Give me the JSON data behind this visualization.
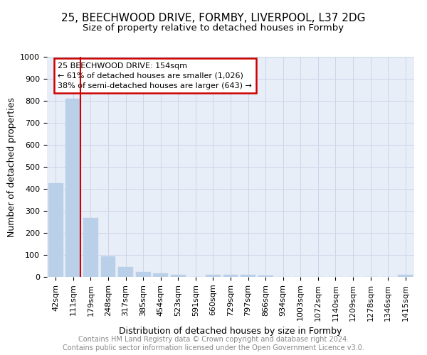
{
  "title1": "25, BEECHWOOD DRIVE, FORMBY, LIVERPOOL, L37 2DG",
  "title2": "Size of property relative to detached houses in Formby",
  "xlabel": "Distribution of detached houses by size in Formby",
  "ylabel": "Number of detached properties",
  "categories": [
    "42sqm",
    "111sqm",
    "179sqm",
    "248sqm",
    "317sqm",
    "385sqm",
    "454sqm",
    "523sqm",
    "591sqm",
    "660sqm",
    "729sqm",
    "797sqm",
    "866sqm",
    "934sqm",
    "1003sqm",
    "1072sqm",
    "1140sqm",
    "1209sqm",
    "1278sqm",
    "1346sqm",
    "1415sqm"
  ],
  "values": [
    425,
    810,
    268,
    92,
    46,
    23,
    15,
    10,
    0,
    10,
    10,
    10,
    8,
    0,
    0,
    0,
    0,
    0,
    0,
    0,
    10
  ],
  "bar_color": "#bad0e8",
  "bar_edgecolor": "#bad0e8",
  "vline_color": "#cc0000",
  "annotation_text": "25 BEECHWOOD DRIVE: 154sqm\n← 61% of detached houses are smaller (1,026)\n38% of semi-detached houses are larger (643) →",
  "annotation_box_edgecolor": "#cc0000",
  "annotation_box_facecolor": "#ffffff",
  "ylim": [
    0,
    1000
  ],
  "yticks": [
    0,
    100,
    200,
    300,
    400,
    500,
    600,
    700,
    800,
    900,
    1000
  ],
  "grid_color": "#ccd6e8",
  "bg_color": "#e8eef8",
  "footer1": "Contains HM Land Registry data © Crown copyright and database right 2024.",
  "footer2": "Contains public sector information licensed under the Open Government Licence v3.0.",
  "title1_fontsize": 11,
  "title2_fontsize": 9.5,
  "axis_label_fontsize": 9,
  "tick_fontsize": 8,
  "footer_fontsize": 7
}
